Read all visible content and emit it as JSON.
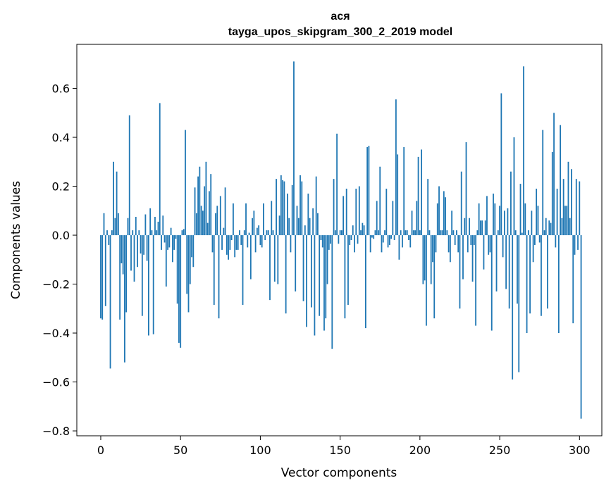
{
  "chart_data": {
    "type": "bar",
    "title": "ася",
    "subtitle": "tayga_upos_skipgram_300_2_2019 model",
    "xlabel": "Vector components",
    "ylabel": "Components values",
    "xlim": [
      -15,
      314
    ],
    "ylim": [
      -0.82,
      0.78
    ],
    "xticks": [
      0,
      50,
      100,
      150,
      200,
      250,
      300
    ],
    "yticks": [
      -0.8,
      -0.6,
      -0.4,
      -0.2,
      0.0,
      0.2,
      0.4,
      0.6
    ],
    "ytick_labels": [
      "−0.8",
      "−0.6",
      "−0.4",
      "−0.2",
      "0.0",
      "0.2",
      "0.4",
      "0.6"
    ],
    "bar_color": "#1f77b4",
    "values": [
      -0.34,
      -0.345,
      0.09,
      -0.29,
      0.02,
      -0.04,
      -0.545,
      0.02,
      0.3,
      0.07,
      0.26,
      0.09,
      -0.345,
      -0.115,
      -0.16,
      -0.52,
      -0.315,
      0.07,
      0.49,
      -0.145,
      0.02,
      -0.19,
      0.075,
      -0.13,
      0.02,
      -0.075,
      -0.33,
      -0.08,
      0.085,
      -0.105,
      -0.41,
      0.11,
      0.02,
      -0.405,
      0.075,
      0.02,
      0.055,
      0.54,
      -0.06,
      0.08,
      -0.03,
      -0.21,
      -0.06,
      -0.05,
      0.03,
      -0.11,
      -0.06,
      -0.015,
      -0.28,
      -0.44,
      -0.46,
      0.02,
      0.025,
      0.43,
      -0.24,
      -0.315,
      -0.2,
      -0.09,
      -0.13,
      0.195,
      0.09,
      0.24,
      0.28,
      0.12,
      0.1,
      0.2,
      0.3,
      0.05,
      0.18,
      0.25,
      -0.07,
      -0.285,
      0.09,
      0.12,
      -0.34,
      0.16,
      -0.06,
      0.03,
      0.195,
      -0.08,
      -0.1,
      -0.06,
      -0.02,
      0.13,
      -0.09,
      -0.06,
      -0.06,
      0.02,
      -0.04,
      -0.285,
      0.02,
      0.13,
      -0.05,
      0.01,
      -0.18,
      0.07,
      0.1,
      -0.07,
      0.03,
      0.04,
      -0.04,
      -0.05,
      0.13,
      -0.02,
      0.02,
      0.02,
      -0.265,
      0.14,
      0.02,
      -0.19,
      0.23,
      -0.2,
      0.08,
      0.245,
      0.225,
      0.22,
      -0.32,
      0.17,
      0.07,
      -0.07,
      0.205,
      0.71,
      -0.23,
      0.12,
      0.07,
      0.245,
      0.22,
      -0.27,
      0.04,
      -0.375,
      0.17,
      0.07,
      -0.295,
      0.11,
      -0.41,
      0.24,
      0.09,
      -0.33,
      -0.02,
      -0.05,
      -0.39,
      -0.34,
      -0.2,
      -0.06,
      -0.035,
      -0.465,
      0.23,
      0.02,
      0.415,
      -0.035,
      0.02,
      0.02,
      0.16,
      -0.34,
      0.19,
      -0.285,
      -0.04,
      -0.02,
      0.04,
      -0.07,
      0.19,
      -0.035,
      0.2,
      0.02,
      0.05,
      0.04,
      -0.38,
      0.36,
      0.365,
      -0.07,
      -0.01,
      -0.015,
      0.02,
      0.14,
      0.02,
      0.28,
      -0.07,
      -0.03,
      0.02,
      0.19,
      -0.05,
      -0.04,
      -0.015,
      0.14,
      -0.02,
      0.555,
      0.33,
      -0.1,
      0.02,
      -0.05,
      0.36,
      0.02,
      0.02,
      -0.02,
      -0.05,
      0.1,
      0.02,
      0.02,
      0.14,
      0.32,
      0.02,
      0.35,
      -0.2,
      -0.185,
      -0.37,
      0.23,
      0.02,
      -0.2,
      -0.11,
      -0.34,
      -0.07,
      0.13,
      0.2,
      0.02,
      0.02,
      0.18,
      0.155,
      0.02,
      -0.07,
      -0.11,
      0.1,
      0.02,
      -0.04,
      0.02,
      -0.07,
      -0.3,
      0.26,
      -0.18,
      0.07,
      0.38,
      -0.07,
      0.07,
      -0.04,
      -0.19,
      -0.04,
      -0.37,
      0.02,
      0.13,
      0.06,
      0.06,
      -0.14,
      0.06,
      0.16,
      -0.08,
      -0.07,
      -0.39,
      0.17,
      0.13,
      -0.23,
      0.02,
      0.12,
      0.58,
      -0.09,
      0.1,
      -0.22,
      0.11,
      -0.3,
      0.26,
      -0.59,
      0.4,
      0.02,
      -0.28,
      -0.56,
      0.21,
      0.01,
      0.69,
      0.13,
      -0.4,
      0.02,
      -0.32,
      0.1,
      -0.11,
      -0.04,
      0.19,
      0.12,
      -0.03,
      -0.33,
      0.43,
      0.02,
      0.07,
      -0.3,
      0.06,
      0.05,
      0.34,
      0.5,
      -0.05,
      0.19,
      -0.4,
      0.45,
      0.07,
      0.23,
      0.12,
      0.12,
      0.3,
      0.07,
      0.27,
      -0.36,
      -0.08,
      0.23,
      -0.06,
      0.22,
      -0.75
    ]
  }
}
